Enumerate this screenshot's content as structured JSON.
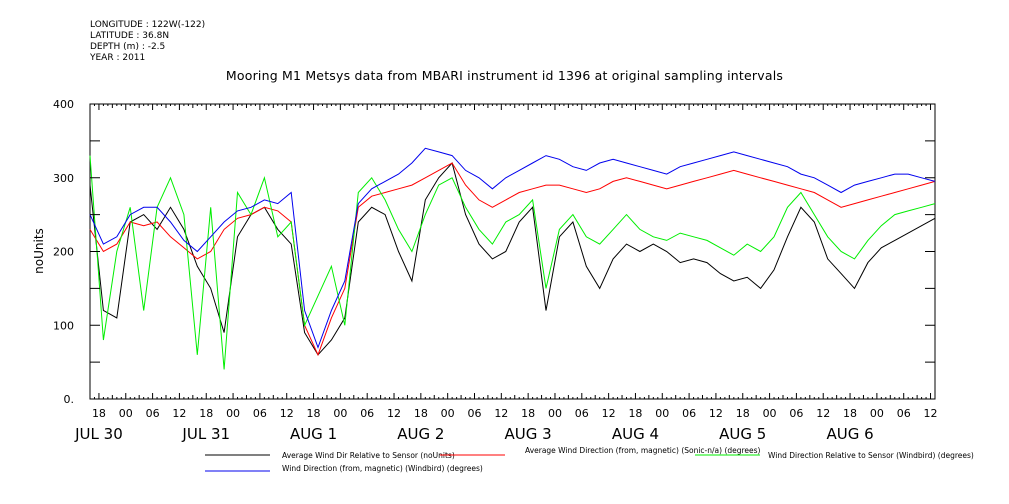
{
  "meta": {
    "longitude": "LONGITUDE : 122W(-122)",
    "latitude": "LATITUDE : 36.8N",
    "depth": "DEPTH (m) : -2.5",
    "year": "YEAR : 2011"
  },
  "title": "Mooring M1 Metsys data from MBARI instrument id 1396 at original sampling intervals",
  "chart_data": {
    "type": "line",
    "ylabel": "noUnits",
    "xlabel": "",
    "ylim": [
      0,
      400
    ],
    "yticks": [
      0,
      100,
      200,
      300,
      400
    ],
    "ytick_labels": [
      "0.",
      "100",
      "200",
      "300",
      "400"
    ],
    "xlim_hours": [
      -8,
      181
    ],
    "hour_ticks": [
      -6,
      0,
      6,
      12,
      18,
      24,
      30,
      36,
      42,
      48,
      54,
      60,
      66,
      72,
      78,
      84,
      90,
      96,
      102,
      108,
      114,
      120,
      126,
      132,
      138,
      144,
      150,
      156,
      162,
      168,
      174,
      180
    ],
    "hour_labels": [
      "18",
      "00",
      "06",
      "12",
      "18",
      "00",
      "06",
      "12",
      "18",
      "00",
      "06",
      "12",
      "18",
      "00",
      "06",
      "12",
      "18",
      "00",
      "06",
      "12",
      "18",
      "00",
      "06",
      "12",
      "18",
      "00",
      "06",
      "12",
      "18",
      "00",
      "06",
      "12"
    ],
    "day_labels": [
      {
        "label": "JUL 30",
        "hour": -6
      },
      {
        "label": "JUL 31",
        "hour": 18
      },
      {
        "label": "AUG  1",
        "hour": 42
      },
      {
        "label": "AUG  2",
        "hour": 66
      },
      {
        "label": "AUG  3",
        "hour": 90
      },
      {
        "label": "AUG  4",
        "hour": 114
      },
      {
        "label": "AUG  5",
        "hour": 138
      },
      {
        "label": "AUG  6",
        "hour": 162
      }
    ],
    "grid": false,
    "legend_position": "bottom",
    "series": [
      {
        "name": "Average Wind Dir Relative to Sensor (noUnits)",
        "color": "#000000",
        "x": [
          -8,
          -5,
          -2,
          1,
          4,
          7,
          10,
          13,
          16,
          19,
          22,
          25,
          28,
          31,
          34,
          37,
          40,
          43,
          46,
          49,
          52,
          55,
          58,
          61,
          64,
          67,
          70,
          73,
          76,
          79,
          82,
          85,
          88,
          91,
          94,
          97,
          100,
          103,
          106,
          109,
          112,
          115,
          118,
          121,
          124,
          127,
          130,
          133,
          136,
          139,
          142,
          145,
          148,
          151,
          154,
          157,
          160,
          163,
          166,
          169,
          172,
          175,
          178,
          181
        ],
        "y": [
          290,
          120,
          110,
          240,
          250,
          230,
          260,
          230,
          180,
          150,
          90,
          220,
          250,
          260,
          230,
          210,
          90,
          60,
          80,
          110,
          240,
          260,
          250,
          200,
          160,
          270,
          300,
          320,
          250,
          210,
          190,
          200,
          240,
          260,
          120,
          220,
          240,
          180,
          150,
          190,
          210,
          200,
          210,
          200,
          185,
          190,
          185,
          170,
          160,
          165,
          150,
          175,
          220,
          260,
          240,
          190,
          170,
          150,
          185,
          205,
          215,
          225,
          235,
          245
        ]
      },
      {
        "name": "Average Wind Direction (from, magnetic) (Sonic-n/a) (degrees)",
        "color": "#ff0000",
        "x": [
          -8,
          -5,
          -2,
          1,
          4,
          7,
          10,
          13,
          16,
          19,
          22,
          25,
          28,
          31,
          34,
          37,
          40,
          43,
          46,
          49,
          52,
          55,
          58,
          61,
          64,
          67,
          70,
          73,
          76,
          79,
          82,
          85,
          88,
          91,
          94,
          97,
          100,
          103,
          106,
          109,
          112,
          115,
          118,
          121,
          124,
          127,
          130,
          133,
          136,
          139,
          142,
          145,
          148,
          151,
          154,
          157,
          160,
          163,
          166,
          169,
          172,
          175,
          178,
          181
        ],
        "y": [
          230,
          200,
          210,
          240,
          235,
          240,
          220,
          205,
          190,
          200,
          230,
          245,
          250,
          260,
          255,
          240,
          100,
          60,
          110,
          150,
          260,
          275,
          280,
          285,
          290,
          300,
          310,
          320,
          290,
          270,
          260,
          270,
          280,
          285,
          290,
          290,
          285,
          280,
          285,
          295,
          300,
          295,
          290,
          285,
          290,
          295,
          300,
          305,
          310,
          305,
          300,
          295,
          290,
          285,
          280,
          270,
          260,
          265,
          270,
          275,
          280,
          285,
          290,
          295
        ]
      },
      {
        "name": "Wind Direction Relative to Sensor (Windbird) (degrees)",
        "color": "#00ee00",
        "x": [
          -8,
          -5,
          -2,
          1,
          4,
          7,
          10,
          13,
          16,
          19,
          22,
          25,
          28,
          31,
          34,
          37,
          40,
          43,
          46,
          49,
          52,
          55,
          58,
          61,
          64,
          67,
          70,
          73,
          76,
          79,
          82,
          85,
          88,
          91,
          94,
          97,
          100,
          103,
          106,
          109,
          112,
          115,
          118,
          121,
          124,
          127,
          130,
          133,
          136,
          139,
          142,
          145,
          148,
          151,
          154,
          157,
          160,
          163,
          166,
          169,
          172,
          175,
          178,
          181
        ],
        "y": [
          330,
          80,
          200,
          260,
          120,
          260,
          300,
          250,
          60,
          260,
          40,
          280,
          250,
          300,
          220,
          240,
          100,
          140,
          180,
          100,
          280,
          300,
          270,
          230,
          200,
          250,
          290,
          300,
          260,
          230,
          210,
          240,
          250,
          270,
          150,
          230,
          250,
          220,
          210,
          230,
          250,
          230,
          220,
          215,
          225,
          220,
          215,
          205,
          195,
          210,
          200,
          220,
          260,
          280,
          250,
          220,
          200,
          190,
          215,
          235,
          250,
          255,
          260,
          265
        ]
      },
      {
        "name": "Wind Direction (from, magnetic) (Windbird) (degrees)",
        "color": "#0000ee",
        "x": [
          -8,
          -5,
          -2,
          1,
          4,
          7,
          10,
          13,
          16,
          19,
          22,
          25,
          28,
          31,
          34,
          37,
          40,
          43,
          46,
          49,
          52,
          55,
          58,
          61,
          64,
          67,
          70,
          73,
          76,
          79,
          82,
          85,
          88,
          91,
          94,
          97,
          100,
          103,
          106,
          109,
          112,
          115,
          118,
          121,
          124,
          127,
          130,
          133,
          136,
          139,
          142,
          145,
          148,
          151,
          154,
          157,
          160,
          163,
          166,
          169,
          172,
          175,
          178,
          181
        ],
        "y": [
          250,
          210,
          220,
          250,
          260,
          260,
          240,
          215,
          200,
          220,
          240,
          255,
          260,
          270,
          265,
          280,
          120,
          70,
          120,
          160,
          265,
          285,
          295,
          305,
          320,
          340,
          335,
          330,
          310,
          300,
          285,
          300,
          310,
          320,
          330,
          325,
          315,
          310,
          320,
          325,
          320,
          315,
          310,
          305,
          315,
          320,
          325,
          330,
          335,
          330,
          325,
          320,
          315,
          305,
          300,
          290,
          280,
          290,
          295,
          300,
          305,
          305,
          300,
          295
        ]
      }
    ]
  }
}
